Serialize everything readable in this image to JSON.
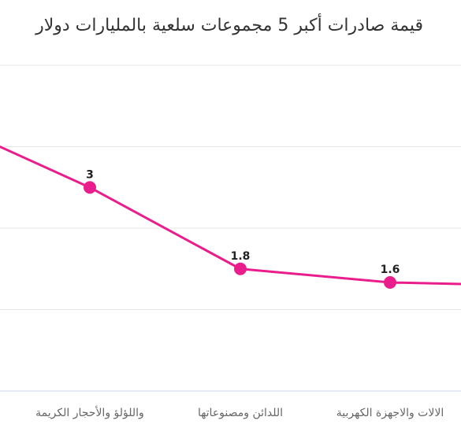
{
  "chart_data": {
    "type": "line",
    "title": "قيمة صادرات أكبر 5 مجموعات سلعية بالمليارات دولار",
    "categories": [
      "",
      "واللؤلؤ والأحجار الكريمة",
      "اللدائن ومصنوعاتها",
      "الالات والاجهزة الكهربية",
      ""
    ],
    "series": [
      {
        "values": [
          4.0,
          3.0,
          1.8,
          1.6,
          1.55
        ],
        "data_labels": [
          "",
          "3",
          "1.8",
          "1.6",
          ""
        ]
      }
    ],
    "ylim": [
      0,
      4.8
    ],
    "grid": true,
    "line_color": "#e91e8c",
    "grid_color": "#e6e6e6",
    "axis_color": "#ccd6eb"
  }
}
